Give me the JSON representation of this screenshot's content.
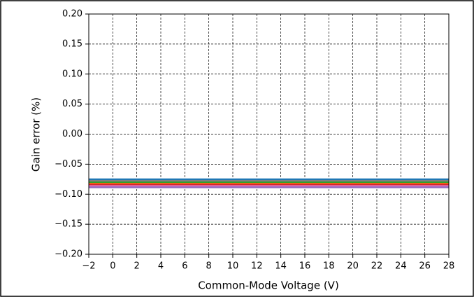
{
  "chart_data": {
    "type": "line",
    "xlabel": "Common-Mode Voltage (V)",
    "ylabel": "Gain error (%)",
    "x": [
      -2,
      28
    ],
    "series": [
      {
        "color": "#1f77b4",
        "values": [
          -0.0752,
          -0.0752
        ]
      },
      {
        "color": "#7f7f7f",
        "values": [
          -0.0778,
          -0.0778
        ]
      },
      {
        "color": "#2ca02c",
        "values": [
          -0.0805,
          -0.0805
        ]
      },
      {
        "color": "#ff7f0e",
        "values": [
          -0.0825,
          -0.0825
        ]
      },
      {
        "color": "#d62728",
        "values": [
          -0.0838,
          -0.0838
        ]
      },
      {
        "color": "#e377c2",
        "values": [
          -0.0865,
          -0.0865
        ]
      },
      {
        "color": "#9467bd",
        "values": [
          -0.0885,
          -0.0885
        ]
      }
    ],
    "xlim": [
      -2,
      28
    ],
    "xticks": [
      {
        "value": -2,
        "label": "−2"
      },
      0,
      2,
      4,
      6,
      8,
      10,
      12,
      14,
      16,
      18,
      20,
      22,
      24,
      26,
      28
    ],
    "ylim": [
      -0.2,
      0.2
    ],
    "yticks": [
      {
        "value": -0.2,
        "label": "−0.20"
      },
      {
        "value": -0.15,
        "label": "−0.15"
      },
      {
        "value": -0.1,
        "label": "−0.10"
      },
      {
        "value": -0.05,
        "label": "−0.05"
      },
      {
        "value": 0,
        "label": "0.00"
      },
      {
        "value": 0.05,
        "label": "0.05"
      },
      {
        "value": 0.1,
        "label": "0.10"
      },
      {
        "value": 0.15,
        "label": "0.15"
      },
      {
        "value": 0.2,
        "label": "0.20"
      }
    ],
    "grid": true
  }
}
